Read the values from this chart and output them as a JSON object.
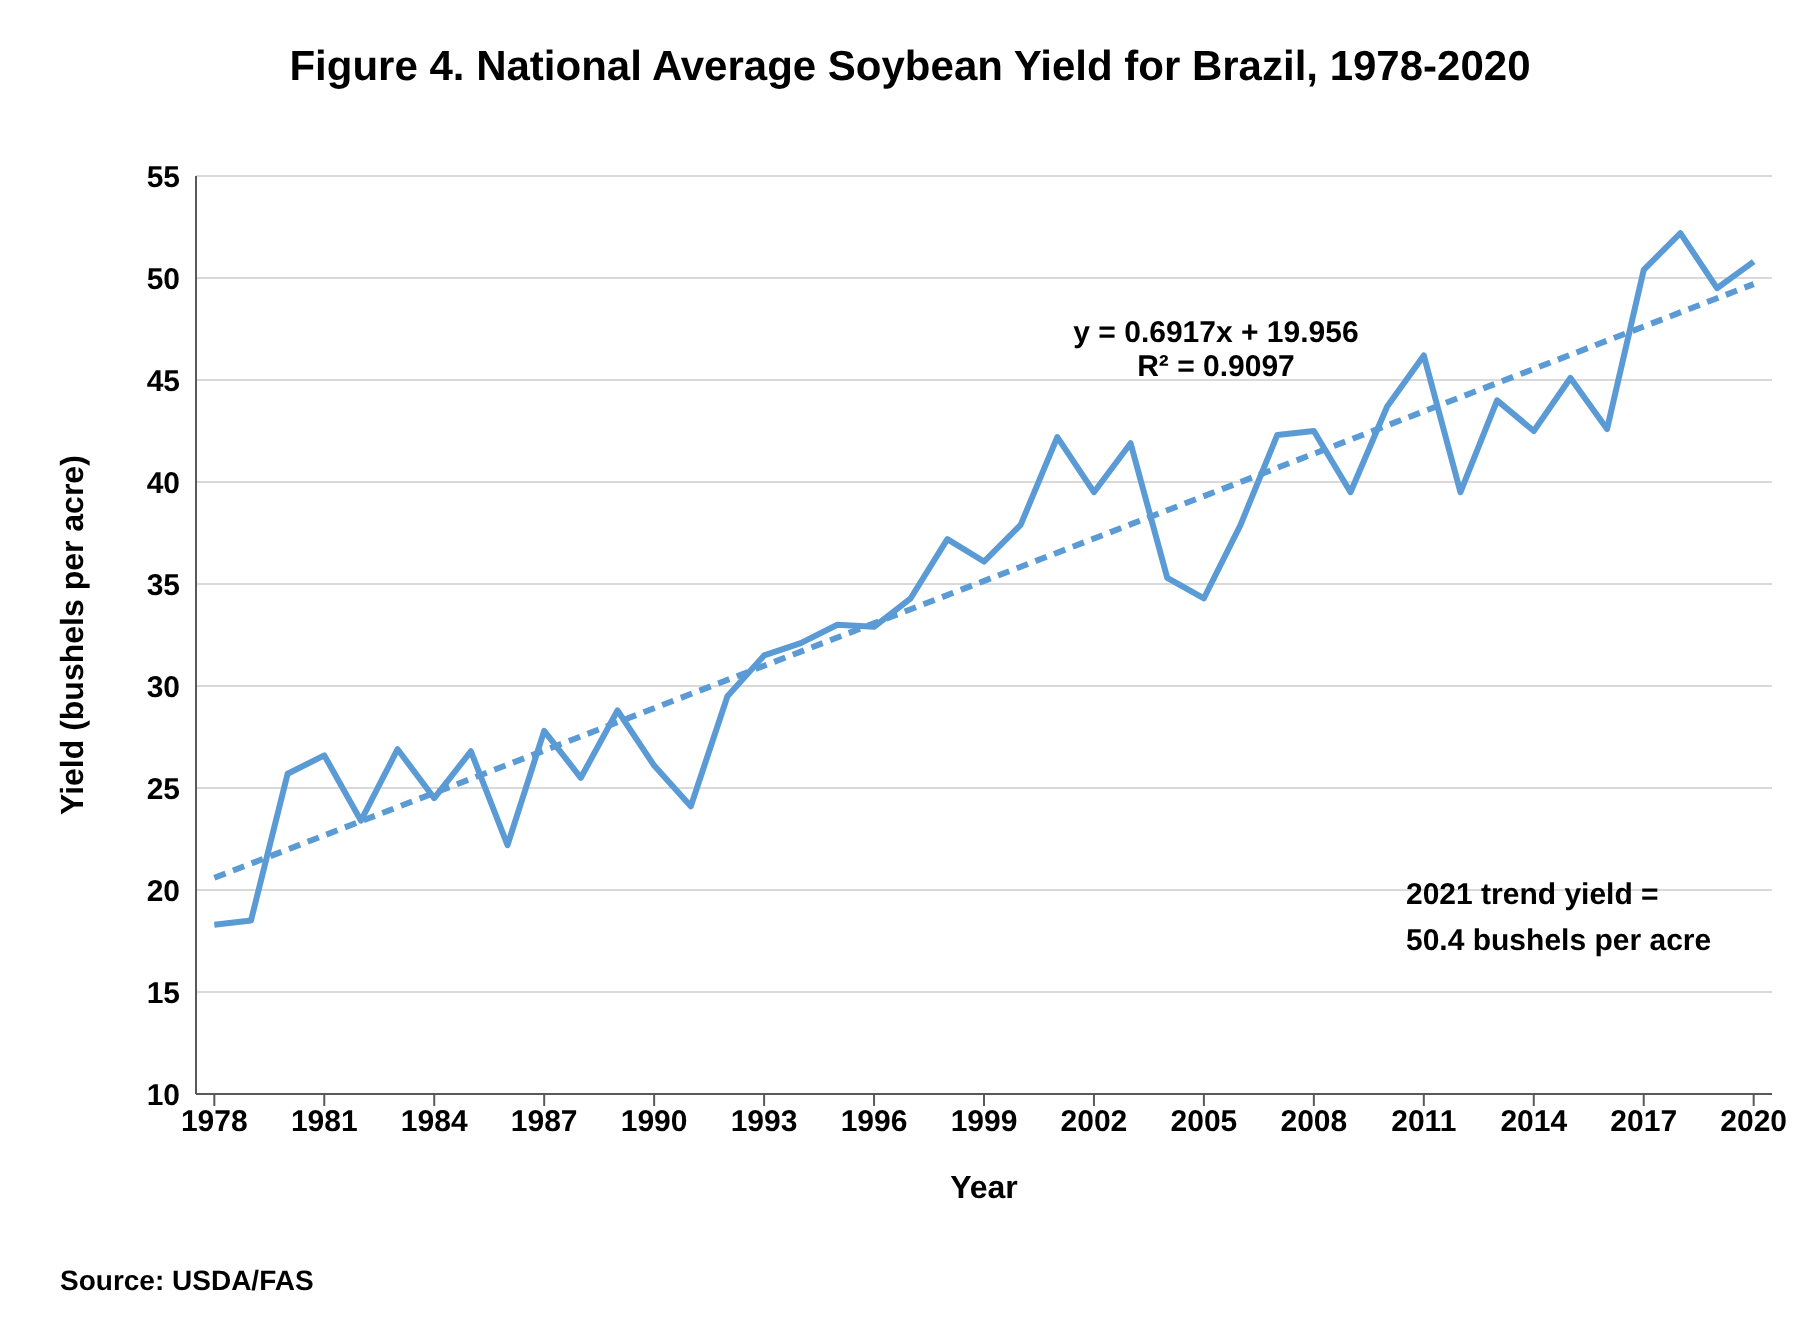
{
  "chart_data": {
    "type": "line",
    "title": "Figure 4. National Average Soybean Yield for Brazil, 1978-2020",
    "xlabel": "Year",
    "ylabel": "Yield (bushels per acre)",
    "x": [
      1978,
      1979,
      1980,
      1981,
      1982,
      1983,
      1984,
      1985,
      1986,
      1987,
      1988,
      1989,
      1990,
      1991,
      1992,
      1993,
      1994,
      1995,
      1996,
      1997,
      1998,
      1999,
      2000,
      2001,
      2002,
      2003,
      2004,
      2005,
      2006,
      2007,
      2008,
      2009,
      2010,
      2011,
      2012,
      2013,
      2014,
      2015,
      2016,
      2017,
      2018,
      2019,
      2020
    ],
    "series": [
      {
        "color": "#5b9bd5",
        "values": [
          18.3,
          18.5,
          25.7,
          26.6,
          23.4,
          26.9,
          24.5,
          26.8,
          22.2,
          27.8,
          25.5,
          28.8,
          26.1,
          24.1,
          29.5,
          31.5,
          32.1,
          33.0,
          32.9,
          34.3,
          37.2,
          36.1,
          37.9,
          42.2,
          39.5,
          41.9,
          35.3,
          34.3,
          37.9,
          42.3,
          42.5,
          39.5,
          43.7,
          46.2,
          39.5,
          44.0,
          42.5,
          45.1,
          42.6,
          50.4,
          52.2,
          49.5,
          50.8
        ]
      },
      {
        "type": "line",
        "color": "#5b9bd5",
        "line_style": "dashed",
        "x": [
          1978,
          2020
        ],
        "values": [
          20.6,
          49.7
        ]
      }
    ],
    "xlim": [
      1977.5,
      2020.5
    ],
    "xticks": [
      1978,
      1981,
      1984,
      1987,
      1990,
      1993,
      1996,
      1999,
      2002,
      2005,
      2008,
      2011,
      2014,
      2017,
      2020
    ],
    "ylim": [
      10,
      55
    ],
    "yticks": [
      10,
      15,
      20,
      25,
      30,
      35,
      40,
      45,
      50,
      55
    ],
    "grid": "y",
    "legend": false,
    "marker": "none",
    "line_style": "solid",
    "annotations": [
      "y = 0.6917x + 19.956",
      "R² = 0.9097",
      "2021 trend yield =",
      "50.4 bushels per acre",
      "Source: USDA/FAS"
    ]
  }
}
